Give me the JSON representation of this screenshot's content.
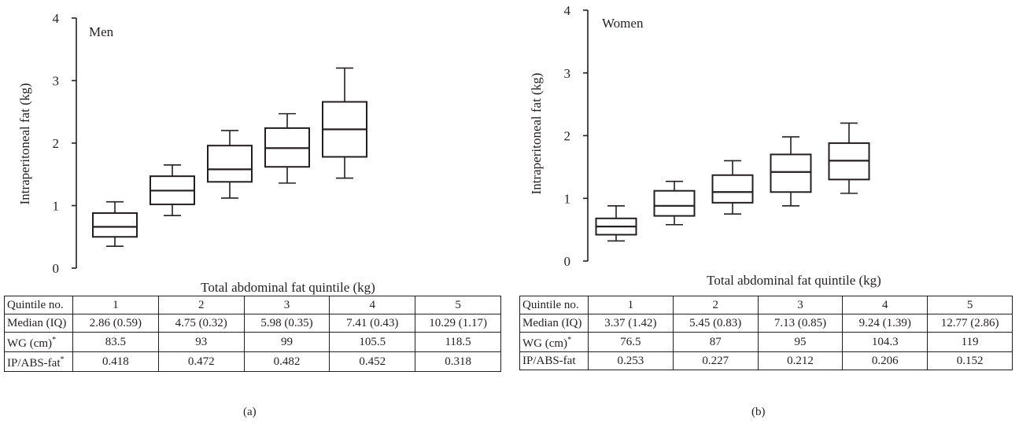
{
  "panels": [
    {
      "id": "a",
      "letter": "(a)",
      "chart_data": {
        "type": "box",
        "title": "Men",
        "xlabel": "Total abdominal fat quintile (kg)",
        "ylabel": "Intraperitoneal fat (kg)",
        "ylim": [
          0,
          4
        ],
        "yticks": [
          "0",
          "1",
          "2",
          "3",
          "4"
        ],
        "boxes": [
          {
            "quintile": 1,
            "min": 0.35,
            "q1": 0.5,
            "median": 0.66,
            "q3": 0.88,
            "max": 1.06
          },
          {
            "quintile": 2,
            "min": 0.84,
            "q1": 1.02,
            "median": 1.24,
            "q3": 1.47,
            "max": 1.65
          },
          {
            "quintile": 3,
            "min": 1.12,
            "q1": 1.38,
            "median": 1.58,
            "q3": 1.96,
            "max": 2.2
          },
          {
            "quintile": 4,
            "min": 1.36,
            "q1": 1.62,
            "median": 1.92,
            "q3": 2.24,
            "max": 2.47
          },
          {
            "quintile": 5,
            "min": 1.44,
            "q1": 1.78,
            "median": 2.22,
            "q3": 2.66,
            "max": 3.2
          }
        ]
      },
      "table": {
        "rows": [
          {
            "label": "Quintile no.",
            "sup": "",
            "cells": [
              "1",
              "2",
              "3",
              "4",
              "5"
            ]
          },
          {
            "label": "Median (IQ)",
            "sup": "",
            "cells": [
              "2.86 (0.59)",
              "4.75 (0.32)",
              "5.98 (0.35)",
              "7.41 (0.43)",
              "10.29 (1.17)"
            ]
          },
          {
            "label": "WG (cm)",
            "sup": "*",
            "cells": [
              "83.5",
              "93",
              "99",
              "105.5",
              "118.5"
            ]
          },
          {
            "label": "IP/ABS-fat",
            "sup": "*",
            "cells": [
              "0.418",
              "0.472",
              "0.482",
              "0.452",
              "0.318"
            ]
          }
        ]
      }
    },
    {
      "id": "b",
      "letter": "(b)",
      "chart_data": {
        "type": "box",
        "title": "Women",
        "xlabel": "Total abdominal fat quintile (kg)",
        "ylabel": "Intraperitoneal fat (kg)",
        "ylim": [
          0,
          4
        ],
        "yticks": [
          "0",
          "1",
          "2",
          "3",
          "4"
        ],
        "boxes": [
          {
            "quintile": 1,
            "min": 0.32,
            "q1": 0.42,
            "median": 0.55,
            "q3": 0.68,
            "max": 0.88
          },
          {
            "quintile": 2,
            "min": 0.58,
            "q1": 0.72,
            "median": 0.88,
            "q3": 1.12,
            "max": 1.27
          },
          {
            "quintile": 3,
            "min": 0.75,
            "q1": 0.93,
            "median": 1.1,
            "q3": 1.37,
            "max": 1.6
          },
          {
            "quintile": 4,
            "min": 0.88,
            "q1": 1.1,
            "median": 1.42,
            "q3": 1.7,
            "max": 1.98
          },
          {
            "quintile": 5,
            "min": 1.08,
            "q1": 1.3,
            "median": 1.6,
            "q3": 1.88,
            "max": 2.2
          }
        ]
      },
      "table": {
        "rows": [
          {
            "label": "Quintile no.",
            "sup": "",
            "cells": [
              "1",
              "2",
              "3",
              "4",
              "5"
            ]
          },
          {
            "label": "Median (IQ)",
            "sup": "",
            "cells": [
              "3.37 (1.42)",
              "5.45 (0.83)",
              "7.13 (0.85)",
              "9.24 (1.39)",
              "12.77 (2.86)"
            ]
          },
          {
            "label": "WG (cm)",
            "sup": "*",
            "cells": [
              "76.5",
              "87",
              "95",
              "104.3",
              "119"
            ]
          },
          {
            "label": "IP/ABS-fat",
            "sup": "",
            "cells": [
              "0.253",
              "0.227",
              "0.212",
              "0.206",
              "0.152"
            ]
          }
        ]
      }
    }
  ]
}
